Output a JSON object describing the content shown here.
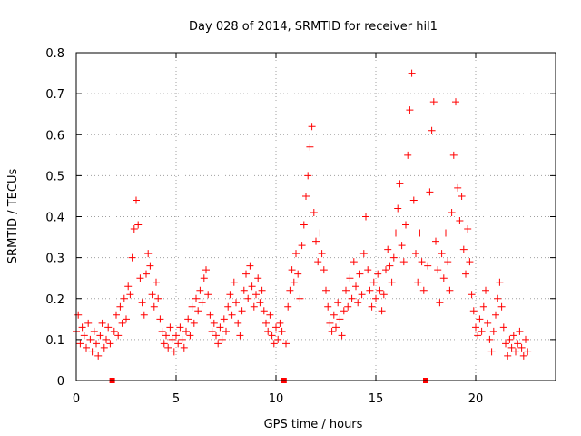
{
  "chart_data": {
    "type": "scatter",
    "title": "Day 028 of 2014, SRMTID for receiver hil1",
    "xlabel": "GPS time / hours",
    "ylabel": "SRMTID / TECUs",
    "xlim": [
      0,
      24
    ],
    "ylim": [
      0,
      0.8
    ],
    "x_ticks": [
      "0",
      "5",
      "10",
      "15",
      "20"
    ],
    "x_tick_values": [
      0,
      5,
      10,
      15,
      20
    ],
    "y_ticks": [
      "0",
      "0.1",
      "0.2",
      "0.3",
      "0.4",
      "0.5",
      "0.6",
      "0.7",
      "0.8"
    ],
    "y_tick_values": [
      0,
      0.1,
      0.2,
      0.3,
      0.4,
      0.5,
      0.6,
      0.7,
      0.8
    ],
    "grid": true,
    "marker": "plus",
    "color": "#ff0000",
    "gap_markers_x": [
      1.8,
      10.4,
      17.5
    ],
    "series": [
      {
        "name": "SRMTID",
        "points": [
          [
            0.0,
            0.12
          ],
          [
            0.1,
            0.16
          ],
          [
            0.2,
            0.09
          ],
          [
            0.3,
            0.13
          ],
          [
            0.4,
            0.11
          ],
          [
            0.5,
            0.08
          ],
          [
            0.6,
            0.14
          ],
          [
            0.7,
            0.1
          ],
          [
            0.8,
            0.07
          ],
          [
            0.9,
            0.12
          ],
          [
            1.0,
            0.09
          ],
          [
            1.1,
            0.06
          ],
          [
            1.2,
            0.11
          ],
          [
            1.3,
            0.14
          ],
          [
            1.4,
            0.08
          ],
          [
            1.5,
            0.1
          ],
          [
            1.6,
            0.13
          ],
          [
            1.7,
            0.09
          ],
          [
            1.9,
            0.12
          ],
          [
            2.0,
            0.16
          ],
          [
            2.1,
            0.11
          ],
          [
            2.2,
            0.18
          ],
          [
            2.3,
            0.14
          ],
          [
            2.4,
            0.2
          ],
          [
            2.5,
            0.15
          ],
          [
            2.6,
            0.23
          ],
          [
            2.7,
            0.21
          ],
          [
            2.8,
            0.3
          ],
          [
            2.9,
            0.37
          ],
          [
            3.0,
            0.44
          ],
          [
            3.1,
            0.38
          ],
          [
            3.2,
            0.25
          ],
          [
            3.3,
            0.19
          ],
          [
            3.4,
            0.16
          ],
          [
            3.5,
            0.26
          ],
          [
            3.6,
            0.31
          ],
          [
            3.7,
            0.28
          ],
          [
            3.8,
            0.21
          ],
          [
            3.9,
            0.18
          ],
          [
            4.0,
            0.24
          ],
          [
            4.1,
            0.2
          ],
          [
            4.2,
            0.15
          ],
          [
            4.3,
            0.12
          ],
          [
            4.4,
            0.09
          ],
          [
            4.5,
            0.11
          ],
          [
            4.6,
            0.08
          ],
          [
            4.7,
            0.13
          ],
          [
            4.8,
            0.1
          ],
          [
            4.9,
            0.07
          ],
          [
            5.0,
            0.11
          ],
          [
            5.1,
            0.09
          ],
          [
            5.2,
            0.13
          ],
          [
            5.3,
            0.1
          ],
          [
            5.4,
            0.08
          ],
          [
            5.5,
            0.12
          ],
          [
            5.6,
            0.15
          ],
          [
            5.7,
            0.11
          ],
          [
            5.8,
            0.18
          ],
          [
            5.9,
            0.14
          ],
          [
            6.0,
            0.2
          ],
          [
            6.1,
            0.17
          ],
          [
            6.2,
            0.22
          ],
          [
            6.3,
            0.19
          ],
          [
            6.4,
            0.25
          ],
          [
            6.5,
            0.27
          ],
          [
            6.6,
            0.21
          ],
          [
            6.7,
            0.16
          ],
          [
            6.8,
            0.12
          ],
          [
            6.9,
            0.14
          ],
          [
            7.0,
            0.11
          ],
          [
            7.1,
            0.09
          ],
          [
            7.2,
            0.13
          ],
          [
            7.3,
            0.1
          ],
          [
            7.4,
            0.15
          ],
          [
            7.5,
            0.12
          ],
          [
            7.6,
            0.18
          ],
          [
            7.7,
            0.21
          ],
          [
            7.8,
            0.16
          ],
          [
            7.9,
            0.24
          ],
          [
            8.0,
            0.19
          ],
          [
            8.1,
            0.14
          ],
          [
            8.2,
            0.11
          ],
          [
            8.3,
            0.17
          ],
          [
            8.4,
            0.22
          ],
          [
            8.5,
            0.26
          ],
          [
            8.6,
            0.2
          ],
          [
            8.7,
            0.28
          ],
          [
            8.8,
            0.23
          ],
          [
            8.9,
            0.18
          ],
          [
            9.0,
            0.21
          ],
          [
            9.1,
            0.25
          ],
          [
            9.2,
            0.19
          ],
          [
            9.3,
            0.22
          ],
          [
            9.4,
            0.17
          ],
          [
            9.5,
            0.14
          ],
          [
            9.6,
            0.12
          ],
          [
            9.7,
            0.16
          ],
          [
            9.8,
            0.11
          ],
          [
            9.9,
            0.09
          ],
          [
            10.0,
            0.13
          ],
          [
            10.1,
            0.1
          ],
          [
            10.2,
            0.14
          ],
          [
            10.3,
            0.12
          ],
          [
            10.5,
            0.09
          ],
          [
            10.6,
            0.18
          ],
          [
            10.7,
            0.22
          ],
          [
            10.8,
            0.27
          ],
          [
            10.9,
            0.24
          ],
          [
            11.0,
            0.31
          ],
          [
            11.1,
            0.26
          ],
          [
            11.2,
            0.2
          ],
          [
            11.3,
            0.33
          ],
          [
            11.4,
            0.38
          ],
          [
            11.5,
            0.45
          ],
          [
            11.6,
            0.5
          ],
          [
            11.7,
            0.57
          ],
          [
            11.8,
            0.62
          ],
          [
            11.9,
            0.41
          ],
          [
            12.0,
            0.34
          ],
          [
            12.1,
            0.29
          ],
          [
            12.2,
            0.36
          ],
          [
            12.3,
            0.31
          ],
          [
            12.4,
            0.27
          ],
          [
            12.5,
            0.22
          ],
          [
            12.6,
            0.18
          ],
          [
            12.7,
            0.14
          ],
          [
            12.8,
            0.12
          ],
          [
            12.9,
            0.16
          ],
          [
            13.0,
            0.13
          ],
          [
            13.1,
            0.19
          ],
          [
            13.2,
            0.15
          ],
          [
            13.3,
            0.11
          ],
          [
            13.4,
            0.17
          ],
          [
            13.5,
            0.22
          ],
          [
            13.6,
            0.18
          ],
          [
            13.7,
            0.25
          ],
          [
            13.8,
            0.2
          ],
          [
            13.9,
            0.29
          ],
          [
            14.0,
            0.23
          ],
          [
            14.1,
            0.19
          ],
          [
            14.2,
            0.26
          ],
          [
            14.3,
            0.21
          ],
          [
            14.4,
            0.31
          ],
          [
            14.5,
            0.4
          ],
          [
            14.6,
            0.27
          ],
          [
            14.7,
            0.22
          ],
          [
            14.8,
            0.18
          ],
          [
            14.9,
            0.24
          ],
          [
            15.0,
            0.2
          ],
          [
            15.1,
            0.26
          ],
          [
            15.2,
            0.22
          ],
          [
            15.3,
            0.17
          ],
          [
            15.4,
            0.21
          ],
          [
            15.5,
            0.27
          ],
          [
            15.6,
            0.32
          ],
          [
            15.7,
            0.28
          ],
          [
            15.8,
            0.24
          ],
          [
            15.9,
            0.3
          ],
          [
            16.0,
            0.36
          ],
          [
            16.1,
            0.42
          ],
          [
            16.2,
            0.48
          ],
          [
            16.3,
            0.33
          ],
          [
            16.4,
            0.29
          ],
          [
            16.5,
            0.38
          ],
          [
            16.6,
            0.55
          ],
          [
            16.7,
            0.66
          ],
          [
            16.8,
            0.75
          ],
          [
            16.9,
            0.44
          ],
          [
            17.0,
            0.31
          ],
          [
            17.1,
            0.24
          ],
          [
            17.2,
            0.36
          ],
          [
            17.3,
            0.29
          ],
          [
            17.4,
            0.22
          ],
          [
            17.6,
            0.28
          ],
          [
            17.7,
            0.46
          ],
          [
            17.8,
            0.61
          ],
          [
            17.9,
            0.68
          ],
          [
            18.0,
            0.34
          ],
          [
            18.1,
            0.27
          ],
          [
            18.2,
            0.19
          ],
          [
            18.3,
            0.31
          ],
          [
            18.4,
            0.25
          ],
          [
            18.5,
            0.36
          ],
          [
            18.6,
            0.29
          ],
          [
            18.7,
            0.22
          ],
          [
            18.8,
            0.41
          ],
          [
            18.9,
            0.55
          ],
          [
            19.0,
            0.68
          ],
          [
            19.1,
            0.47
          ],
          [
            19.2,
            0.39
          ],
          [
            19.3,
            0.45
          ],
          [
            19.4,
            0.32
          ],
          [
            19.5,
            0.26
          ],
          [
            19.6,
            0.37
          ],
          [
            19.7,
            0.29
          ],
          [
            19.8,
            0.21
          ],
          [
            19.9,
            0.17
          ],
          [
            20.0,
            0.13
          ],
          [
            20.1,
            0.11
          ],
          [
            20.2,
            0.15
          ],
          [
            20.3,
            0.12
          ],
          [
            20.4,
            0.18
          ],
          [
            20.5,
            0.22
          ],
          [
            20.6,
            0.14
          ],
          [
            20.7,
            0.1
          ],
          [
            20.8,
            0.07
          ],
          [
            20.9,
            0.12
          ],
          [
            21.0,
            0.16
          ],
          [
            21.1,
            0.2
          ],
          [
            21.2,
            0.24
          ],
          [
            21.3,
            0.18
          ],
          [
            21.4,
            0.13
          ],
          [
            21.5,
            0.09
          ],
          [
            21.6,
            0.06
          ],
          [
            21.7,
            0.1
          ],
          [
            21.8,
            0.08
          ],
          [
            21.9,
            0.11
          ],
          [
            22.0,
            0.07
          ],
          [
            22.1,
            0.09
          ],
          [
            22.2,
            0.12
          ],
          [
            22.3,
            0.08
          ],
          [
            22.4,
            0.06
          ],
          [
            22.5,
            0.1
          ],
          [
            22.6,
            0.07
          ]
        ]
      }
    ]
  }
}
